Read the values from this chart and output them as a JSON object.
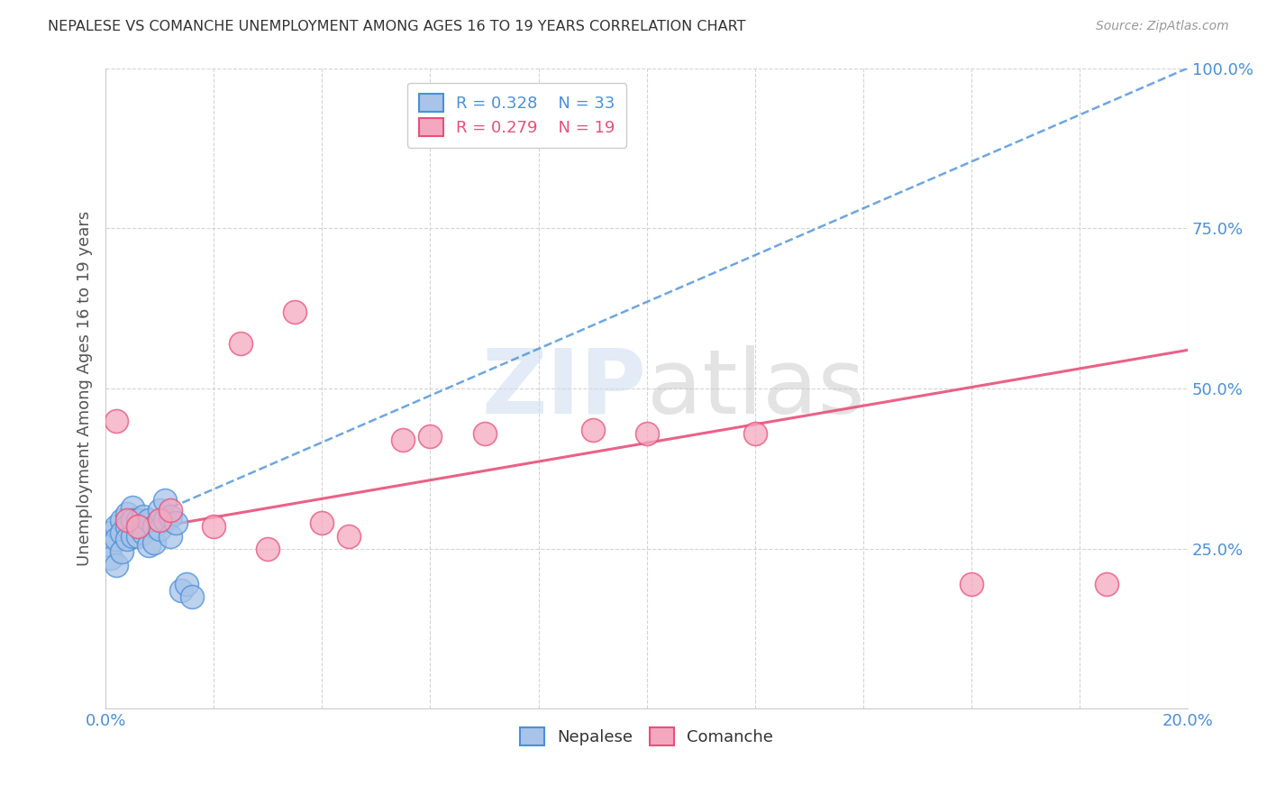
{
  "title": "NEPALESE VS COMANCHE UNEMPLOYMENT AMONG AGES 16 TO 19 YEARS CORRELATION CHART",
  "source": "Source: ZipAtlas.com",
  "ylabel": "Unemployment Among Ages 16 to 19 years",
  "xlim": [
    0.0,
    0.2
  ],
  "ylim": [
    0.0,
    1.0
  ],
  "nepalese_R": 0.328,
  "nepalese_N": 33,
  "comanche_R": 0.279,
  "comanche_N": 19,
  "nepalese_color": "#a8c4e8",
  "comanche_color": "#f4a8c0",
  "nepalese_line_color": "#4a90d9",
  "comanche_line_color": "#e8507a",
  "axis_color": "#4a90d9",
  "comanche_axis_color": "#4a90d9",
  "nepalese_x": [
    0.001,
    0.001,
    0.001,
    0.002,
    0.002,
    0.002,
    0.003,
    0.003,
    0.003,
    0.004,
    0.004,
    0.004,
    0.005,
    0.005,
    0.005,
    0.006,
    0.006,
    0.007,
    0.007,
    0.008,
    0.008,
    0.009,
    0.009,
    0.01,
    0.01,
    0.011,
    0.011,
    0.012,
    0.012,
    0.013,
    0.014,
    0.015,
    0.016
  ],
  "nepalese_y": [
    0.275,
    0.255,
    0.235,
    0.285,
    0.265,
    0.225,
    0.295,
    0.275,
    0.245,
    0.305,
    0.285,
    0.265,
    0.315,
    0.295,
    0.27,
    0.295,
    0.27,
    0.3,
    0.275,
    0.295,
    0.255,
    0.285,
    0.26,
    0.31,
    0.28,
    0.325,
    0.295,
    0.3,
    0.27,
    0.29,
    0.185,
    0.195,
    0.175
  ],
  "comanche_x": [
    0.002,
    0.004,
    0.006,
    0.01,
    0.012,
    0.02,
    0.025,
    0.03,
    0.035,
    0.04,
    0.045,
    0.055,
    0.06,
    0.07,
    0.09,
    0.1,
    0.12,
    0.16,
    0.185
  ],
  "comanche_y": [
    0.45,
    0.295,
    0.285,
    0.295,
    0.31,
    0.285,
    0.57,
    0.25,
    0.62,
    0.29,
    0.27,
    0.42,
    0.425,
    0.43,
    0.435,
    0.43,
    0.43,
    0.195,
    0.195
  ],
  "nep_line_x": [
    0.0,
    0.2
  ],
  "nep_line_y": [
    0.27,
    1.0
  ],
  "com_line_x": [
    0.0,
    0.2
  ],
  "com_line_y": [
    0.27,
    0.56
  ]
}
